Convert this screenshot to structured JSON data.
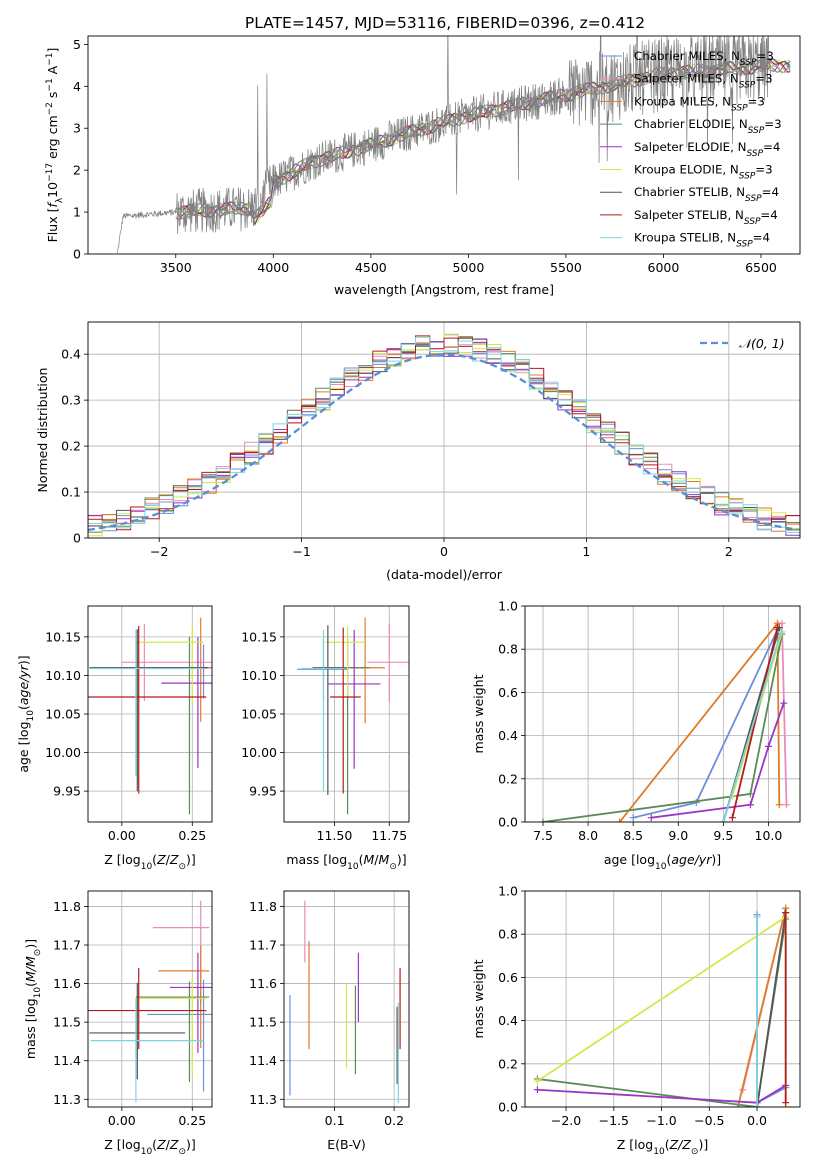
{
  "title": "PLATE=1457, MJD=53116, FIBERID=0396, z=0.412",
  "colors": {
    "Chabrier MILES": "#6c8fd9",
    "Salpeter MILES": "#e98bbd",
    "Kroupa MILES": "#e07b2a",
    "Chabrier ELODIE": "#5b8a5b",
    "Salpeter ELODIE": "#9a35c4",
    "Kroupa ELODIE": "#d4e84c",
    "Chabrier STELIB": "#555555",
    "Salpeter STELIB": "#b31b1b",
    "Kroupa STELIB": "#7fd4dc",
    "spectrum": "#808080",
    "gaussian": "#5a8fd6",
    "grid": "#b0b0b0"
  },
  "chart_data": [
    {
      "id": "spectrum",
      "type": "line",
      "xlabel": "wavelength [Angstrom, rest frame]",
      "ylabel": "Flux [f_λ 10^-17 erg cm^-2 s^-1 A^-1]",
      "xlim": [
        3050,
        6700
      ],
      "ylim": [
        0,
        5.2
      ],
      "xticks": [
        3500,
        4000,
        4500,
        5000,
        5500,
        6000,
        6500
      ],
      "yticks": [
        0,
        1,
        2,
        3,
        4,
        5
      ],
      "grid": false,
      "legend_position": "top-right",
      "legend": [
        {
          "label": "Chabrier MILES, N_SSP=3",
          "color_key": "Chabrier MILES"
        },
        {
          "label": "Salpeter MILES, N_SSP=3",
          "color_key": "Salpeter MILES"
        },
        {
          "label": "Kroupa MILES, N_SSP=3",
          "color_key": "Kroupa MILES"
        },
        {
          "label": "Chabrier ELODIE, N_SSP=3",
          "color_key": "Chabrier ELODIE"
        },
        {
          "label": "Salpeter ELODIE, N_SSP=4",
          "color_key": "Salpeter ELODIE"
        },
        {
          "label": "Kroupa ELODIE, N_SSP=3",
          "color_key": "Kroupa ELODIE"
        },
        {
          "label": "Chabrier STELIB, N_SSP=4",
          "color_key": "Chabrier STELIB"
        },
        {
          "label": "Salpeter STELIB, N_SSP=4",
          "color_key": "Salpeter STELIB"
        },
        {
          "label": "Kroupa STELIB, N_SSP=4",
          "color_key": "Kroupa STELIB"
        }
      ],
      "spectrum_trend": {
        "x": [
          3200,
          3230,
          3500,
          3900,
          4000,
          4200,
          4500,
          4700,
          5000,
          5300,
          5500,
          5700,
          6000,
          6300,
          6550
        ],
        "y": [
          0,
          0.9,
          1.0,
          1.1,
          1.7,
          2.2,
          2.6,
          2.9,
          3.3,
          3.6,
          3.8,
          4.0,
          4.3,
          4.4,
          4.5
        ]
      }
    },
    {
      "id": "residuals",
      "type": "step",
      "xlabel": "(data-model)/error",
      "ylabel": "Normed distribution",
      "xlim": [
        -2.5,
        2.5
      ],
      "ylim": [
        0,
        0.47
      ],
      "xticks": [
        -2,
        -1,
        0,
        1,
        2
      ],
      "yticks": [
        0.0,
        0.1,
        0.2,
        0.3,
        0.4
      ],
      "grid": true,
      "legend_position": "top-right",
      "legend": [
        {
          "label": "𝒩(0, 1)",
          "color_key": "gaussian"
        }
      ],
      "gaussian": {
        "mean": 0,
        "sigma": 1
      }
    },
    {
      "id": "age-vs-Z",
      "type": "errorbar",
      "xlabel": "Z [log10(Z/Z⊙)]",
      "ylabel": "age  [log10(age/yr)]",
      "xlim": [
        -0.12,
        0.32
      ],
      "ylim": [
        9.91,
        10.19
      ],
      "xticks": [
        0.0,
        0.25
      ],
      "xticklabels": [
        "0.00",
        "0.25"
      ],
      "yticks": [
        9.95,
        10.0,
        10.05,
        10.1,
        10.15
      ],
      "yticklabels": [
        "9.95",
        "10.00",
        "10.05",
        "10.10",
        "10.15"
      ],
      "grid": true,
      "points": [
        {
          "model": "Chabrier MILES",
          "x": 0.29,
          "y": 10.11,
          "xerr": [
            0.3,
            0.3
          ],
          "yerr": [
            0.04,
            0.03
          ]
        },
        {
          "model": "Salpeter MILES",
          "x": 0.08,
          "y": 10.117,
          "xerr": [
            0.08,
            0.3
          ],
          "yerr": [
            0.05,
            0.05
          ]
        },
        {
          "model": "Kroupa MILES",
          "x": 0.28,
          "y": 10.11,
          "xerr": [
            0.3,
            0.3
          ],
          "yerr": [
            0.07,
            0.065
          ]
        },
        {
          "model": "Chabrier ELODIE",
          "x": 0.24,
          "y": 10.11,
          "xerr": [
            0.35,
            0.06
          ],
          "yerr": [
            0.19,
            0.04
          ]
        },
        {
          "model": "Salpeter ELODIE",
          "x": 0.27,
          "y": 10.09,
          "xerr": [
            0.13,
            0.06
          ],
          "yerr": [
            0.11,
            0.06
          ]
        },
        {
          "model": "Kroupa ELODIE",
          "x": 0.25,
          "y": 10.143,
          "xerr": [
            0.2,
            0.04
          ],
          "yerr": [
            0.08,
            0.02
          ]
        },
        {
          "model": "Chabrier STELIB",
          "x": 0.055,
          "y": 10.11,
          "xerr": [
            0.17,
            0.25
          ],
          "yerr": [
            0.16,
            0.05
          ]
        },
        {
          "model": "Salpeter STELIB",
          "x": 0.06,
          "y": 10.072,
          "xerr": [
            0.18,
            0.24
          ],
          "yerr": [
            0.125,
            0.092
          ]
        },
        {
          "model": "Kroupa STELIB",
          "x": 0.05,
          "y": 10.109,
          "xerr": [
            0.16,
            0.24
          ],
          "yerr": [
            0.14,
            0.05
          ]
        }
      ]
    },
    {
      "id": "age-vs-mass",
      "type": "errorbar",
      "xlabel": "mass [log10(M/M⊙)]",
      "ylabel": "",
      "xlim": [
        11.27,
        11.84
      ],
      "ylim": [
        9.91,
        10.19
      ],
      "xticks": [
        11.5,
        11.75
      ],
      "xticklabels": [
        "11.50",
        "11.75"
      ],
      "yticks": [
        9.95,
        10.0,
        10.05,
        10.1,
        10.15
      ],
      "yticklabels": [
        "9.95",
        "10.00",
        "10.05",
        "10.10",
        "10.15"
      ],
      "grid": true,
      "points": [
        {
          "model": "Chabrier MILES",
          "x": 11.45,
          "y": 10.108,
          "xerr": [
            0.12,
            0.11
          ],
          "yerr": [
            0.04,
            0.04
          ]
        },
        {
          "model": "Salpeter MILES",
          "x": 11.75,
          "y": 10.117,
          "xerr": [
            0.1,
            0.09
          ],
          "yerr": [
            0.052,
            0.05
          ]
        },
        {
          "model": "Kroupa MILES",
          "x": 11.64,
          "y": 10.11,
          "xerr": [
            0.1,
            0.09
          ],
          "yerr": [
            0.072,
            0.065
          ]
        },
        {
          "model": "Chabrier ELODIE",
          "x": 11.56,
          "y": 10.11,
          "xerr": [
            0.12,
            0.1
          ],
          "yerr": [
            0.19,
            0.04
          ]
        },
        {
          "model": "Salpeter ELODIE",
          "x": 11.59,
          "y": 10.089,
          "xerr": [
            0.12,
            0.12
          ],
          "yerr": [
            0.11,
            0.07
          ]
        },
        {
          "model": "Kroupa ELODIE",
          "x": 11.56,
          "y": 10.143,
          "xerr": [
            0.1,
            0.08
          ],
          "yerr": [
            0.07,
            0.02
          ]
        },
        {
          "model": "Chabrier STELIB",
          "x": 11.47,
          "y": 10.11,
          "xerr": [
            0.07,
            0.08
          ],
          "yerr": [
            0.165,
            0.055
          ]
        },
        {
          "model": "Salpeter STELIB",
          "x": 11.54,
          "y": 10.072,
          "xerr": [
            0.06,
            0.08
          ],
          "yerr": [
            0.125,
            0.09
          ]
        },
        {
          "model": "Kroupa STELIB",
          "x": 11.45,
          "y": 10.109,
          "xerr": [
            0.1,
            0.1
          ],
          "yerr": [
            0.16,
            0.05
          ]
        }
      ]
    },
    {
      "id": "massweight-vs-age",
      "type": "line",
      "xlabel": "age  [log10(age/yr)]",
      "ylabel": "mass weight",
      "xlim": [
        7.3,
        10.35
      ],
      "ylim": [
        0,
        1.0
      ],
      "xticks": [
        7.5,
        8.0,
        8.5,
        9.0,
        9.5,
        10.0
      ],
      "xticklabels": [
        "7.5",
        "8.0",
        "8.5",
        "9.0",
        "9.5",
        "10.0"
      ],
      "yticks": [
        0.0,
        0.2,
        0.4,
        0.6,
        0.8,
        1.0
      ],
      "yticklabels": [
        "0.0",
        "0.2",
        "0.4",
        "0.6",
        "0.8",
        "1.0"
      ],
      "grid": true,
      "series": [
        {
          "model": "Chabrier MILES",
          "x": [
            8.5,
            9.2,
            10.1
          ],
          "y": [
            0.02,
            0.09,
            0.89
          ]
        },
        {
          "model": "Salpeter MILES",
          "x": [
            10.15,
            10.2
          ],
          "y": [
            0.92,
            0.08
          ]
        },
        {
          "model": "Kroupa MILES",
          "x": [
            8.35,
            10.1,
            10.12
          ],
          "y": [
            0.0,
            0.92,
            0.08
          ]
        },
        {
          "model": "Chabrier ELODIE",
          "x": [
            7.5,
            9.8,
            10.15
          ],
          "y": [
            0.0,
            0.13,
            0.87
          ]
        },
        {
          "model": "Salpeter ELODIE",
          "x": [
            8.7,
            9.8,
            10.0,
            10.17
          ],
          "y": [
            0.02,
            0.08,
            0.35,
            0.55
          ]
        },
        {
          "model": "Kroupa ELODIE",
          "x": [
            9.6,
            10.15
          ],
          "y": [
            0.12,
            0.88
          ]
        },
        {
          "model": "Chabrier STELIB",
          "x": [
            9.5,
            10.12
          ],
          "y": [
            0.0,
            0.9
          ]
        },
        {
          "model": "Salpeter STELIB",
          "x": [
            9.6,
            10.1
          ],
          "y": [
            0.02,
            0.9
          ]
        },
        {
          "model": "Kroupa STELIB",
          "x": [
            9.5,
            10.14
          ],
          "y": [
            0.0,
            0.88
          ]
        }
      ]
    },
    {
      "id": "mass-vs-Z",
      "type": "errorbar",
      "xlabel": "Z [log10(Z/Z⊙)]",
      "ylabel": "mass [log10(M/M⊙)]",
      "xlim": [
        -0.12,
        0.32
      ],
      "ylim": [
        11.28,
        11.84
      ],
      "xticks": [
        0.0,
        0.25
      ],
      "xticklabels": [
        "0.00",
        "0.25"
      ],
      "yticks": [
        11.3,
        11.4,
        11.5,
        11.6,
        11.7,
        11.8
      ],
      "yticklabels": [
        "11.3",
        "11.4",
        "11.5",
        "11.6",
        "11.7",
        "11.8"
      ],
      "grid": true,
      "points": [
        {
          "model": "Chabrier MILES",
          "x": 0.29,
          "y": 11.52,
          "xerr": [
            0.2,
            0.03
          ],
          "yerr": [
            0.2,
            0.09
          ]
        },
        {
          "model": "Salpeter MILES",
          "x": 0.28,
          "y": 11.745,
          "xerr": [
            0.17,
            0.03
          ],
          "yerr": [
            0.2,
            0.07
          ]
        },
        {
          "model": "Kroupa MILES",
          "x": 0.28,
          "y": 11.633,
          "xerr": [
            0.15,
            0.03
          ],
          "yerr": [
            0.2,
            0.065
          ]
        },
        {
          "model": "Chabrier ELODIE",
          "x": 0.24,
          "y": 11.565,
          "xerr": [
            0.19,
            0.07
          ],
          "yerr": [
            0.22,
            0.04
          ]
        },
        {
          "model": "Salpeter ELODIE",
          "x": 0.27,
          "y": 11.59,
          "xerr": [
            0.1,
            0.05
          ],
          "yerr": [
            0.17,
            0.09
          ]
        },
        {
          "model": "Kroupa ELODIE",
          "x": 0.25,
          "y": 11.562,
          "xerr": [
            0.2,
            0.05
          ],
          "yerr": [
            0.2,
            0.05
          ]
        },
        {
          "model": "Chabrier STELIB",
          "x": 0.055,
          "y": 11.472,
          "xerr": [
            0.17,
            0.17
          ],
          "yerr": [
            0.12,
            0.13
          ]
        },
        {
          "model": "Salpeter STELIB",
          "x": 0.06,
          "y": 11.53,
          "xerr": [
            0.18,
            0.24
          ],
          "yerr": [
            0.1,
            0.11
          ]
        },
        {
          "model": "Kroupa STELIB",
          "x": 0.05,
          "y": 11.452,
          "xerr": [
            0.16,
            0.24
          ],
          "yerr": [
            0.16,
            0.11
          ]
        }
      ]
    },
    {
      "id": "mass-vs-EBV",
      "type": "errorbar",
      "xlabel": "E(B-V)",
      "ylabel": "",
      "xlim": [
        0.015,
        0.225
      ],
      "ylim": [
        11.28,
        11.84
      ],
      "xticks": [
        0.1,
        0.2
      ],
      "xticklabels": [
        "0.1",
        "0.2"
      ],
      "yticks": [
        11.3,
        11.4,
        11.5,
        11.6,
        11.7,
        11.8
      ],
      "yticklabels": [
        "11.3",
        "11.4",
        "11.5",
        "11.6",
        "11.7",
        "11.8"
      ],
      "grid": true,
      "points": [
        {
          "model": "Chabrier MILES",
          "x": 0.025,
          "y": 11.44,
          "xerr": [
            0,
            0
          ],
          "yerr": [
            0.13,
            0.13
          ]
        },
        {
          "model": "Salpeter MILES",
          "x": 0.05,
          "y": 11.735,
          "xerr": [
            0,
            0
          ],
          "yerr": [
            0.08,
            0.08
          ]
        },
        {
          "model": "Kroupa MILES",
          "x": 0.057,
          "y": 11.57,
          "xerr": [
            0,
            0
          ],
          "yerr": [
            0.14,
            0.14
          ]
        },
        {
          "model": "Chabrier ELODIE",
          "x": 0.135,
          "y": 11.535,
          "xerr": [
            0,
            0
          ],
          "yerr": [
            0.17,
            0.06
          ]
        },
        {
          "model": "Salpeter ELODIE",
          "x": 0.14,
          "y": 11.59,
          "xerr": [
            0,
            0
          ],
          "yerr": [
            0.09,
            0.09
          ]
        },
        {
          "model": "Kroupa ELODIE",
          "x": 0.12,
          "y": 11.49,
          "xerr": [
            0,
            0
          ],
          "yerr": [
            0.11,
            0.11
          ]
        },
        {
          "model": "Chabrier STELIB",
          "x": 0.205,
          "y": 11.44,
          "xerr": [
            0,
            0
          ],
          "yerr": [
            0.1,
            0.1
          ]
        },
        {
          "model": "Salpeter STELIB",
          "x": 0.21,
          "y": 11.535,
          "xerr": [
            0,
            0
          ],
          "yerr": [
            0.105,
            0.105
          ]
        },
        {
          "model": "Kroupa STELIB",
          "x": 0.207,
          "y": 11.42,
          "xerr": [
            0,
            0
          ],
          "yerr": [
            0.13,
            0.13
          ]
        }
      ]
    },
    {
      "id": "massweight-vs-Z",
      "type": "line",
      "xlabel": "Z [log10(Z/Z⊙)]",
      "ylabel": "mass weight",
      "xlim": [
        -2.43,
        0.45
      ],
      "ylim": [
        0,
        1.0
      ],
      "xticks": [
        -2.0,
        -1.5,
        -1.0,
        -0.5,
        0.0
      ],
      "xticklabels": [
        "−2.0",
        "−1.5",
        "−1.0",
        "−0.5",
        "0.0"
      ],
      "yticks": [
        0.0,
        0.2,
        0.4,
        0.6,
        0.8,
        1.0
      ],
      "yticklabels": [
        "0.0",
        "0.2",
        "0.4",
        "0.6",
        "0.8",
        "1.0"
      ],
      "grid": true,
      "series": [
        {
          "model": "Chabrier MILES",
          "x": [
            0.0,
            0.0,
            0.3
          ],
          "y": [
            0.89,
            0.02,
            0.09
          ]
        },
        {
          "model": "Salpeter MILES",
          "x": [
            -0.15,
            0.3
          ],
          "y": [
            0.08,
            0.92
          ]
        },
        {
          "model": "Kroupa MILES",
          "x": [
            -0.2,
            0.3
          ],
          "y": [
            0.0,
            0.92
          ]
        },
        {
          "model": "Chabrier ELODIE",
          "x": [
            -2.3,
            0.0,
            0.3
          ],
          "y": [
            0.13,
            0.0,
            0.87
          ]
        },
        {
          "model": "Salpeter ELODIE",
          "x": [
            -2.3,
            0.0,
            0.3
          ],
          "y": [
            0.08,
            0.02,
            0.1
          ]
        },
        {
          "model": "Kroupa ELODIE",
          "x": [
            -2.3,
            0.3,
            0.3
          ],
          "y": [
            0.12,
            0.88,
            0.0
          ]
        },
        {
          "model": "Chabrier STELIB",
          "x": [
            0.0,
            0.3
          ],
          "y": [
            0.0,
            0.9
          ]
        },
        {
          "model": "Salpeter STELIB",
          "x": [
            0.3,
            0.3
          ],
          "y": [
            0.02,
            0.9
          ]
        },
        {
          "model": "Kroupa STELIB",
          "x": [
            0.0,
            0.0
          ],
          "y": [
            0.0,
            0.88
          ]
        }
      ]
    }
  ]
}
